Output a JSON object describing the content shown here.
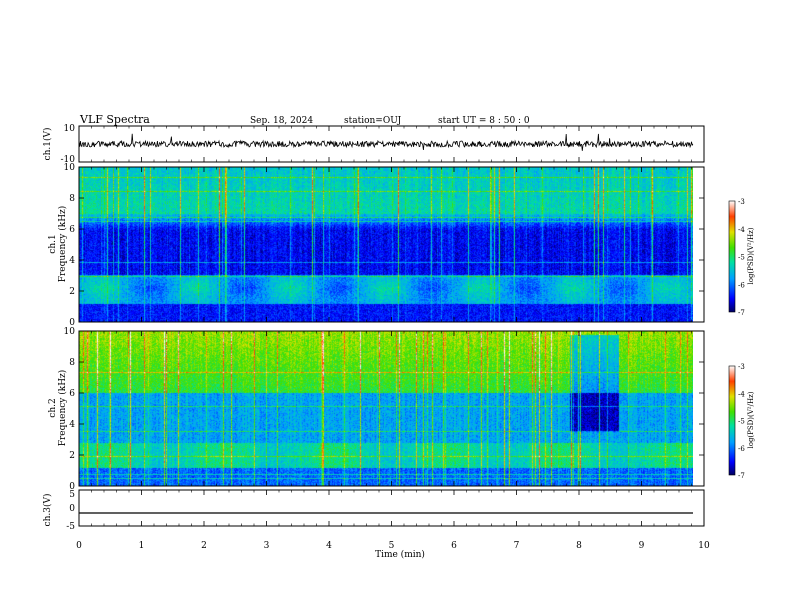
{
  "header": {
    "title": "VLF Spectra",
    "date": "Sep. 18, 2024",
    "station": "station=OUJ",
    "start": "start  UT =  8 : 50 : 0"
  },
  "chart_data": [
    {
      "type": "line",
      "ylabel": "ch.1(V)",
      "ylim": [
        -10,
        10
      ],
      "yticks": [
        "10",
        "-10"
      ],
      "xlim": [
        0,
        10
      ],
      "description_values": {
        "baseline": 0,
        "noise_band": [
          -1.5,
          1.5
        ]
      }
    },
    {
      "type": "heatmap",
      "ylabel_top": "ch.1",
      "ylabel": "Frequency  (kHz)",
      "ylim": [
        0,
        10
      ],
      "yticks": [
        "0",
        "2",
        "4",
        "6",
        "8",
        "10"
      ],
      "xlim": [
        0,
        10
      ],
      "colorbar": {
        "label": "log(PSD)(V²/Hz)",
        "range": [
          -7,
          -3
        ],
        "ticks": [
          "-3",
          "-4",
          "-5",
          "-6",
          "-7"
        ]
      }
    },
    {
      "type": "heatmap",
      "ylabel_top": "ch.2",
      "ylabel": "Frequency  (kHz)",
      "ylim": [
        0,
        10
      ],
      "yticks": [
        "0",
        "2",
        "4",
        "6",
        "8",
        "10"
      ],
      "xlim": [
        0,
        10
      ],
      "colorbar": {
        "label": "log(PSD)(V²/Hz)",
        "range": [
          -7,
          -3
        ],
        "ticks": [
          "-3",
          "-4",
          "-5",
          "-6",
          "-7"
        ]
      }
    },
    {
      "type": "line",
      "ylabel": "ch.3(V)",
      "ylim": [
        -5,
        5
      ],
      "yticks": [
        "5",
        "0",
        "-5"
      ],
      "xlim": [
        0,
        10
      ],
      "description_values": {
        "constant": -1.5
      }
    }
  ],
  "xaxis": {
    "label": "Time  (min)",
    "ticks": [
      "0",
      "1",
      "2",
      "3",
      "4",
      "5",
      "6",
      "7",
      "8",
      "9",
      "10"
    ]
  }
}
